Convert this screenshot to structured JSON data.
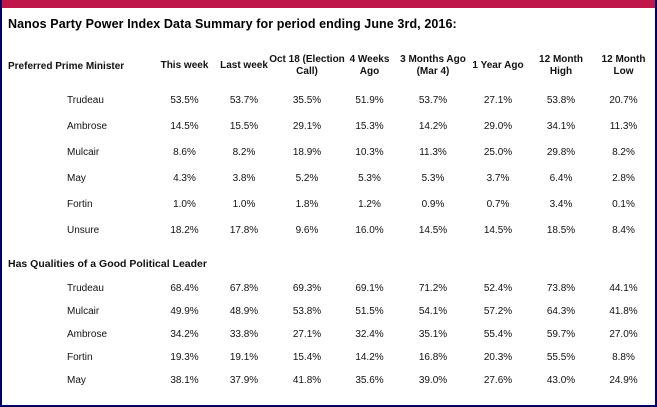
{
  "page": {
    "title": "Nanos Party Power Index Data Summary for period ending June 3rd, 2016:"
  },
  "colors": {
    "accent_bar": "#C0174B",
    "border": "#000066"
  },
  "table": {
    "columns": [
      "This week",
      "Last week",
      "Oct 18 (Election\nCall)",
      "4 Weeks\nAgo",
      "3 Months Ago\n(Mar 4)",
      "1 Year Ago",
      "12 Month\nHigh",
      "12 Month\nLow"
    ],
    "sections": [
      {
        "label": "Preferred Prime Minister",
        "label_position": "header-row",
        "rows": [
          {
            "name": "Trudeau",
            "values": [
              "53.5%",
              "53.7%",
              "35.5%",
              "51.9%",
              "53.7%",
              "27.1%",
              "53.8%",
              "20.7%"
            ]
          },
          {
            "name": "Ambrose",
            "values": [
              "14.5%",
              "15.5%",
              "29.1%",
              "15.3%",
              "14.2%",
              "29.0%",
              "34.1%",
              "11.3%"
            ]
          },
          {
            "name": "Mulcair",
            "values": [
              "8.6%",
              "8.2%",
              "18.9%",
              "10.3%",
              "11.3%",
              "25.0%",
              "29.8%",
              "8.2%"
            ]
          },
          {
            "name": "May",
            "values": [
              "4.3%",
              "3.8%",
              "5.2%",
              "5.3%",
              "5.3%",
              "3.7%",
              "6.4%",
              "2.8%"
            ]
          },
          {
            "name": "Fortin",
            "values": [
              "1.0%",
              "1.0%",
              "1.8%",
              "1.2%",
              "0.9%",
              "0.7%",
              "3.4%",
              "0.1%"
            ]
          },
          {
            "name": "Unsure",
            "values": [
              "18.2%",
              "17.8%",
              "9.6%",
              "16.0%",
              "14.5%",
              "14.5%",
              "18.5%",
              "8.4%"
            ]
          }
        ]
      },
      {
        "label": "Has Qualities of a Good Political Leader",
        "label_position": "body-row",
        "rows": [
          {
            "name": "Trudeau",
            "values": [
              "68.4%",
              "67.8%",
              "69.3%",
              "69.1%",
              "71.2%",
              "52.4%",
              "73.8%",
              "44.1%"
            ]
          },
          {
            "name": "Mulcair",
            "values": [
              "49.9%",
              "48.9%",
              "53.8%",
              "51.5%",
              "54.1%",
              "57.2%",
              "64.3%",
              "41.8%"
            ]
          },
          {
            "name": "Ambrose",
            "values": [
              "34.2%",
              "33.8%",
              "27.1%",
              "32.4%",
              "35.1%",
              "55.4%",
              "59.7%",
              "27.0%"
            ]
          },
          {
            "name": "Fortin",
            "values": [
              "19.3%",
              "19.1%",
              "15.4%",
              "14.2%",
              "16.8%",
              "20.3%",
              "55.5%",
              "8.8%"
            ]
          },
          {
            "name": "May",
            "values": [
              "38.1%",
              "37.9%",
              "41.8%",
              "35.6%",
              "39.0%",
              "27.6%",
              "43.0%",
              "24.9%"
            ]
          }
        ]
      }
    ]
  }
}
